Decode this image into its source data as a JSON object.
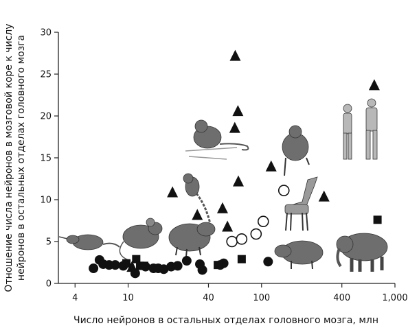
{
  "chart_data": {
    "type": "scatter",
    "xlabel": "Число нейронов в остальных отделах головного мозга, млн",
    "ylabel_lines": [
      "Отношение числа нейронов в мозговой коре к числу",
      "нейронов в остальных отделах головного мозга"
    ],
    "x_scale": "log",
    "xlim": [
      3,
      1000
    ],
    "ylim": [
      0,
      30
    ],
    "x_ticks": [
      {
        "value": 4,
        "label": "4"
      },
      {
        "value": 10,
        "label": "10"
      },
      {
        "value": 40,
        "label": "40"
      },
      {
        "value": 100,
        "label": "100"
      },
      {
        "value": 400,
        "label": "400"
      },
      {
        "value": 1000,
        "label": "1,000"
      }
    ],
    "y_ticks": [
      {
        "value": 0,
        "label": "0"
      },
      {
        "value": 5,
        "label": "5"
      },
      {
        "value": 10,
        "label": "10"
      },
      {
        "value": 15,
        "label": "15"
      },
      {
        "value": 20,
        "label": "20"
      },
      {
        "value": 25,
        "label": "25"
      },
      {
        "value": 30,
        "label": "30"
      }
    ],
    "grid": false,
    "series": [
      {
        "marker": "filled-circle",
        "points": [
          {
            "x": 5.5,
            "y": 1.8
          },
          {
            "x": 6.1,
            "y": 2.8
          },
          {
            "x": 6.5,
            "y": 2.3
          },
          {
            "x": 7.2,
            "y": 2.2
          },
          {
            "x": 8.0,
            "y": 2.2
          },
          {
            "x": 9.2,
            "y": 2.1
          },
          {
            "x": 11.3,
            "y": 1.2
          },
          {
            "x": 13.5,
            "y": 2.0
          },
          {
            "x": 15.5,
            "y": 1.8
          },
          {
            "x": 16.8,
            "y": 1.8
          },
          {
            "x": 18.5,
            "y": 1.7
          },
          {
            "x": 21.0,
            "y": 2.0
          },
          {
            "x": 23.5,
            "y": 2.1
          },
          {
            "x": 27.5,
            "y": 2.7
          },
          {
            "x": 34.5,
            "y": 2.3
          },
          {
            "x": 36.0,
            "y": 1.6
          },
          {
            "x": 49.0,
            "y": 2.2
          },
          {
            "x": 52.0,
            "y": 2.4
          },
          {
            "x": 112,
            "y": 2.6
          }
        ]
      },
      {
        "marker": "open-circle",
        "points": [
          {
            "x": 60,
            "y": 5.0
          },
          {
            "x": 71,
            "y": 5.3
          },
          {
            "x": 91,
            "y": 5.9
          },
          {
            "x": 103,
            "y": 7.4
          },
          {
            "x": 147,
            "y": 11.1
          }
        ]
      },
      {
        "marker": "filled-triangle",
        "points": [
          {
            "x": 10.7,
            "y": 2.0
          },
          {
            "x": 21.5,
            "y": 10.9
          },
          {
            "x": 33.0,
            "y": 8.2
          },
          {
            "x": 51.0,
            "y": 9.0
          },
          {
            "x": 55.5,
            "y": 6.8
          },
          {
            "x": 63.5,
            "y": 27.2
          },
          {
            "x": 63.0,
            "y": 18.6
          },
          {
            "x": 66.5,
            "y": 20.6
          },
          {
            "x": 67.0,
            "y": 12.2
          },
          {
            "x": 118,
            "y": 14.0
          },
          {
            "x": 294,
            "y": 10.4
          },
          {
            "x": 700,
            "y": 23.7
          }
        ]
      },
      {
        "marker": "filled-square",
        "points": [
          {
            "x": 9.7,
            "y": 2.4
          },
          {
            "x": 11.5,
            "y": 2.9
          },
          {
            "x": 12.3,
            "y": 2.1
          },
          {
            "x": 13.2,
            "y": 2.1
          },
          {
            "x": 47.0,
            "y": 2.2
          },
          {
            "x": 71.0,
            "y": 2.9
          },
          {
            "x": 740,
            "y": 7.6
          }
        ]
      }
    ],
    "illustrations": [
      "shrew",
      "mouse",
      "agouti",
      "monkey",
      "marmoset",
      "macaque",
      "humans",
      "giraffe",
      "capybara",
      "elephant"
    ]
  }
}
